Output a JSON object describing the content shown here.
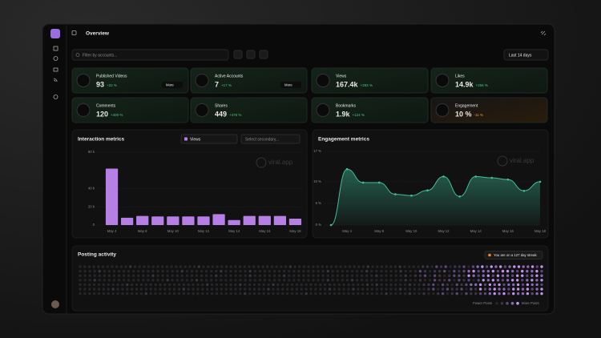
{
  "header": {
    "title": "Overview"
  },
  "filter": {
    "placeholder": "Filter by accounts...",
    "date_range": "Last 14 days"
  },
  "stats": [
    {
      "label": "Published Videos",
      "value": "93",
      "change": "+22 %",
      "more": "More"
    },
    {
      "label": "Active Accounts",
      "value": "7",
      "change": "+17 %",
      "more": "More"
    },
    {
      "label": "Views",
      "value": "167.4k",
      "change": "+283 %"
    },
    {
      "label": "Likes",
      "value": "14.9k",
      "change": "+256 %"
    },
    {
      "label": "Comments",
      "value": "120",
      "change": "+400 %"
    },
    {
      "label": "Shares",
      "value": "449",
      "change": "+476 %"
    },
    {
      "label": "Bookmarks",
      "value": "1.9k",
      "change": "+124 %"
    },
    {
      "label": "Engagement",
      "value": "10 %",
      "change": "-11 %"
    }
  ],
  "watermark": "viral.app",
  "interaction": {
    "type": "bar",
    "title": "Interaction metrics",
    "metric": "Views",
    "secondary": "Select secondary...",
    "color": "#b57fe6",
    "categories": [
      "May 4",
      null,
      "May 8",
      null,
      "May 10",
      null,
      "May 12",
      null,
      "May 14",
      null,
      "May 16",
      null,
      "May 18"
    ],
    "values": [
      62000,
      8000,
      10000,
      9500,
      9500,
      9500,
      9500,
      12000,
      5500,
      10000,
      10000,
      10000,
      7000
    ],
    "ylim": [
      0,
      80000
    ],
    "yticks": [
      0,
      {
        "value": 20000,
        "label": "20 k"
      },
      {
        "value": 40000,
        "label": "40 k"
      },
      {
        "value": 80000,
        "label": "80 k"
      }
    ],
    "grid": true
  },
  "engagement": {
    "type": "line",
    "title": "Engagement metrics",
    "color": "#3fbf9a",
    "categories": [
      null,
      "May 4",
      null,
      "May 8",
      null,
      "May 10",
      null,
      "May 12",
      null,
      "May 14",
      null,
      "May 16",
      null,
      "May 18"
    ],
    "values": [
      0,
      12.9,
      9.8,
      9.8,
      7.1,
      6.8,
      8,
      11.2,
      6.6,
      11.2,
      10.9,
      10.5,
      7.9,
      10
    ],
    "ylim": [
      0,
      17
    ],
    "yticks": [
      {
        "value": 0,
        "label": "0 %"
      },
      {
        "value": 5,
        "label": "5 %"
      },
      {
        "value": 10,
        "label": "10 %"
      },
      {
        "value": 17,
        "label": "17 %"
      }
    ],
    "grid": true
  },
  "posting_activity": {
    "title": "Posting activity",
    "streak": "You are on a 127 day streak",
    "fewer": "Fewer Posts",
    "more": "More Posts",
    "colors": [
      "#262629",
      "#3a3344",
      "#5c4877",
      "#8b68b6",
      "#c493ef"
    ],
    "rows": [
      "000000000001000000000000001000000000000000000010000000000000000100000010000110212011202342434234433424",
      "000010000000000000000100000001000001000000000000000100000001000000100021011202123423342443243342",
      "000000000000000100000000000010000001000000100000000000000000010000010112021012214323424332442343",
      "000100000000000000100000100000000000000000000000000100001000000000010010021120212024343234423434",
      "000000000010000000000000000100000010000001000000000000000000010100000010011202102123342434233424332",
      "000000010000000000000010000000000000000010000000000001000010000000001000001201211202142343324434234",
      "000000000000001000000000000000000001000000000000100000000000000001000010010012012021122343424334234"
    ]
  }
}
